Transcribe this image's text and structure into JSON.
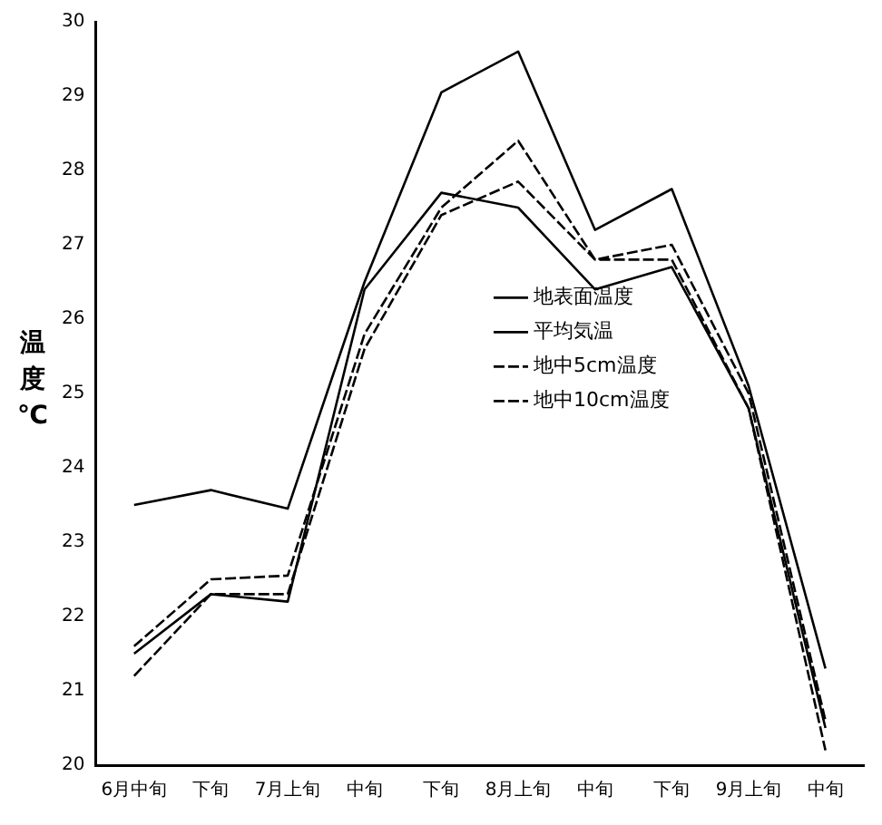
{
  "chart_data": {
    "type": "line",
    "ylabel": "温度℃",
    "categories": [
      "6月中旬",
      "下旬",
      "7月上旬",
      "中旬",
      "下旬",
      "8月上旬",
      "中旬",
      "下旬",
      "9月上旬",
      "中旬"
    ],
    "ylim": [
      20,
      30
    ],
    "yticks": [
      20,
      21,
      22,
      23,
      24,
      25,
      26,
      27,
      28,
      29,
      30
    ],
    "grid": false,
    "marker": "none",
    "legend": "right",
    "series": [
      {
        "name": "地表面温度",
        "color": "#000000",
        "line_style": "solid",
        "values": [
          23.5,
          23.7,
          23.45,
          26.5,
          29.05,
          29.6,
          27.2,
          27.75,
          25.1,
          21.3
        ]
      },
      {
        "name": "平均気温",
        "color": "#000000",
        "line_style": "solid",
        "values": [
          21.5,
          22.3,
          22.2,
          26.4,
          27.7,
          27.5,
          26.4,
          26.7,
          24.8,
          20.5
        ]
      },
      {
        "name": "地中5cm温度",
        "color": "#000000",
        "line_style": "dashed",
        "values": [
          21.6,
          22.5,
          22.55,
          25.8,
          27.5,
          28.4,
          26.8,
          27.0,
          25.0,
          20.6
        ]
      },
      {
        "name": "地中10cm温度",
        "color": "#000000",
        "line_style": "dashed",
        "values": [
          21.2,
          22.3,
          22.3,
          25.6,
          27.4,
          27.85,
          26.8,
          26.8,
          24.8,
          20.2
        ]
      }
    ]
  }
}
